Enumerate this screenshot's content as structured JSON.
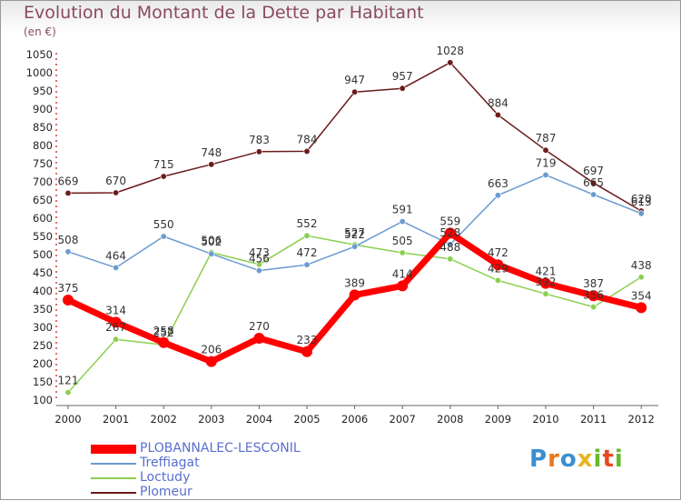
{
  "title": "Evolution du Montant de la Dette par Habitant",
  "unit": "(en €)",
  "logo": "Proxiti",
  "chart_data": {
    "type": "line",
    "title": "Evolution du Montant de la Dette par Habitant",
    "ylabel": "(en €)",
    "xlabel": "",
    "ylim": [
      100,
      1050
    ],
    "yticks": [
      100,
      150,
      200,
      250,
      300,
      350,
      400,
      450,
      500,
      550,
      600,
      650,
      700,
      750,
      800,
      850,
      900,
      950,
      1000,
      1050
    ],
    "grid": false,
    "legend_position": "bottom-left",
    "categories": [
      "2000",
      "2001",
      "2002",
      "2003",
      "2004",
      "2005",
      "2006",
      "2007",
      "2008",
      "2009",
      "2010",
      "2011",
      "2012"
    ],
    "series": [
      {
        "name": "PLOBANNALEC-LESCONIL",
        "color": "#ff0000",
        "values": [
          375,
          314,
          258,
          206,
          270,
          233,
          389,
          414,
          559,
          472,
          421,
          387,
          354
        ]
      },
      {
        "name": "Treffiagat",
        "color": "#6a9bd0",
        "values": [
          508,
          464,
          550,
          502,
          456,
          472,
          522,
          591,
          528,
          663,
          719,
          665,
          613
        ]
      },
      {
        "name": "Loctudy",
        "color": "#8bd050",
        "values": [
          121,
          267,
          252,
          506,
          473,
          552,
          527,
          505,
          488,
          429,
          392,
          356,
          438
        ]
      },
      {
        "name": "Plomeur",
        "color": "#6b1a1a",
        "values": [
          669,
          670,
          715,
          748,
          783,
          784,
          947,
          957,
          1028,
          884,
          787,
          697,
          620
        ]
      }
    ]
  }
}
